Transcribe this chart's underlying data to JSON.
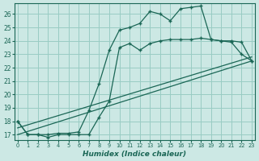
{
  "title": "",
  "xlabel": "Humidex (Indice chaleur)",
  "ylabel": "",
  "background_color": "#cce8e4",
  "grid_color": "#99ccc4",
  "line_color": "#1a6655",
  "x_ticks": [
    0,
    1,
    2,
    3,
    4,
    5,
    6,
    7,
    8,
    9,
    10,
    11,
    12,
    13,
    14,
    15,
    16,
    17,
    18,
    19,
    20,
    21,
    22,
    23
  ],
  "y_ticks": [
    17,
    18,
    19,
    20,
    21,
    22,
    23,
    24,
    25,
    26
  ],
  "xlim": [
    -0.3,
    23.3
  ],
  "ylim": [
    16.6,
    26.8
  ],
  "line1_x": [
    0,
    1,
    2,
    3,
    4,
    5,
    6,
    7,
    8,
    9,
    10,
    11,
    12,
    13,
    14,
    15,
    16,
    17,
    18,
    19,
    20,
    21,
    22,
    23
  ],
  "line1_y": [
    18.0,
    17.0,
    17.0,
    17.0,
    17.1,
    17.1,
    17.2,
    18.8,
    20.8,
    23.3,
    24.8,
    25.0,
    25.3,
    26.2,
    26.0,
    25.5,
    26.4,
    26.5,
    26.6,
    24.1,
    24.0,
    24.0,
    23.9,
    22.5
  ],
  "line2_x": [
    0,
    1,
    2,
    3,
    4,
    5,
    6,
    7,
    8,
    9,
    10,
    11,
    12,
    13,
    14,
    15,
    16,
    17,
    18,
    19,
    20,
    21,
    22,
    23
  ],
  "line2_y": [
    18.0,
    17.0,
    17.0,
    16.8,
    17.0,
    17.0,
    17.0,
    17.0,
    18.3,
    19.5,
    23.5,
    23.8,
    23.3,
    23.8,
    24.0,
    24.1,
    24.1,
    24.1,
    24.2,
    24.1,
    24.0,
    23.9,
    23.0,
    22.5
  ],
  "line3_x": [
    0,
    23
  ],
  "line3_y": [
    17.0,
    22.5
  ],
  "line4_x": [
    0,
    23
  ],
  "line4_y": [
    17.5,
    22.8
  ]
}
